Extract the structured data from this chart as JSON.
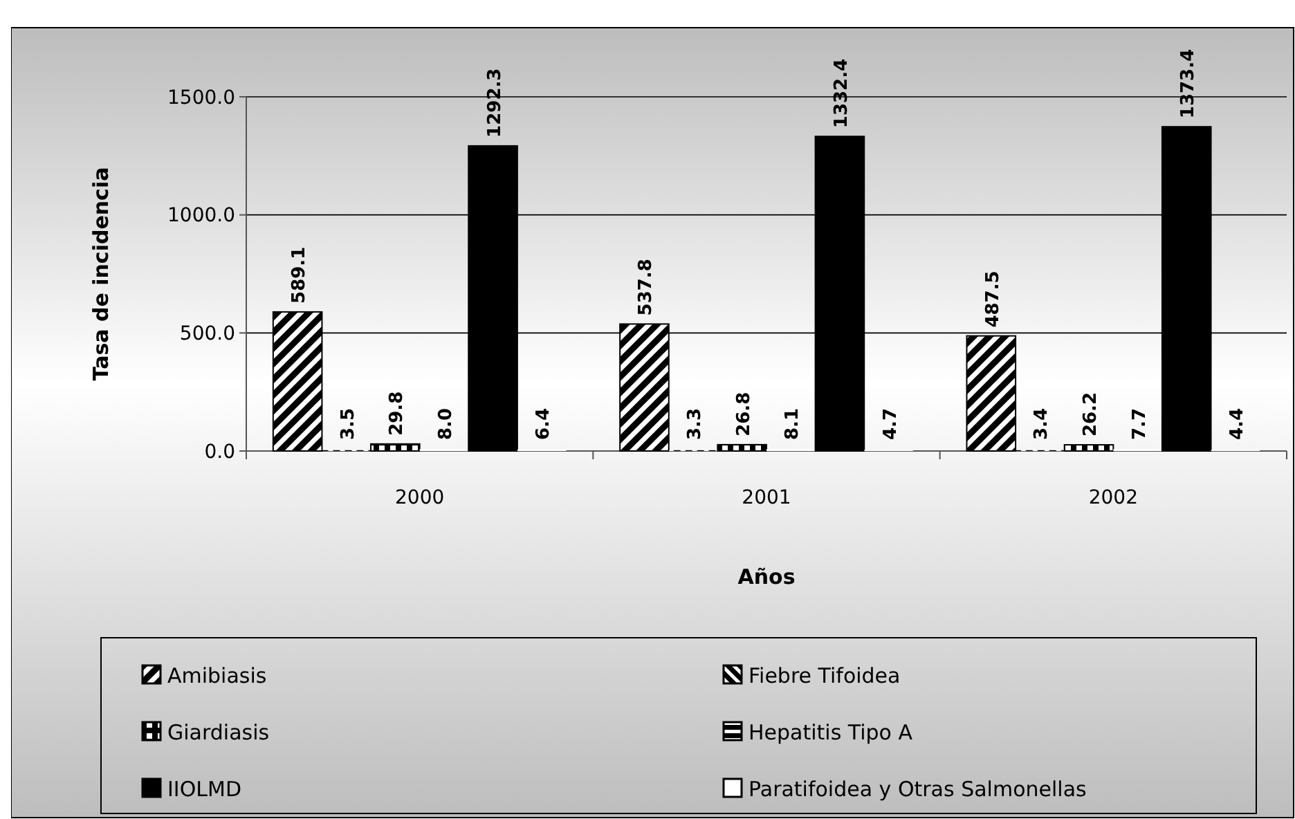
{
  "chart_data": {
    "type": "bar",
    "ylabel": "Tasa de incidencia",
    "xlabel": "Años",
    "categories": [
      "2000",
      "2001",
      "2002"
    ],
    "series": [
      {
        "name": "Amibiasis",
        "color": "#000000",
        "values": [
          589.1,
          537.8,
          487.5
        ],
        "value_labels": [
          "589.1",
          "537.8",
          "487.5"
        ]
      },
      {
        "name": "Fiebre Tifoidea",
        "color": "#000000",
        "values": [
          3.5,
          3.3,
          3.4
        ],
        "value_labels": [
          "3.5",
          "3.3",
          "3.4"
        ]
      },
      {
        "name": "Giardiasis",
        "color": "#000000",
        "values": [
          29.8,
          26.8,
          26.2
        ],
        "value_labels": [
          "29.8",
          "26.8",
          "26.2"
        ]
      },
      {
        "name": "Hepatitis Tipo A",
        "color": "#000000",
        "values": [
          8.0,
          8.1,
          7.7
        ],
        "value_labels": [
          "8.0",
          "8.1",
          "7.7"
        ]
      },
      {
        "name": "IIOLMD",
        "color": "#000000",
        "values": [
          1292.3,
          1332.4,
          1373.4
        ],
        "value_labels": [
          "1292.3",
          "1332.4",
          "1373.4"
        ]
      },
      {
        "name": "Paratifoidea y Otras Salmonellas",
        "color": "#ffffff",
        "values": [
          6.4,
          4.7,
          4.4
        ],
        "value_labels": [
          "6.4",
          "4.7",
          "4.4"
        ]
      }
    ],
    "ylim": [
      0,
      1500
    ],
    "yticks": [
      {
        "value": 0,
        "label": "0.0"
      },
      {
        "value": 500,
        "label": "500.0"
      },
      {
        "value": 1000,
        "label": "1000.0"
      },
      {
        "value": 1500,
        "label": "1500.0"
      }
    ],
    "grid": "y",
    "legend": "bottom"
  }
}
